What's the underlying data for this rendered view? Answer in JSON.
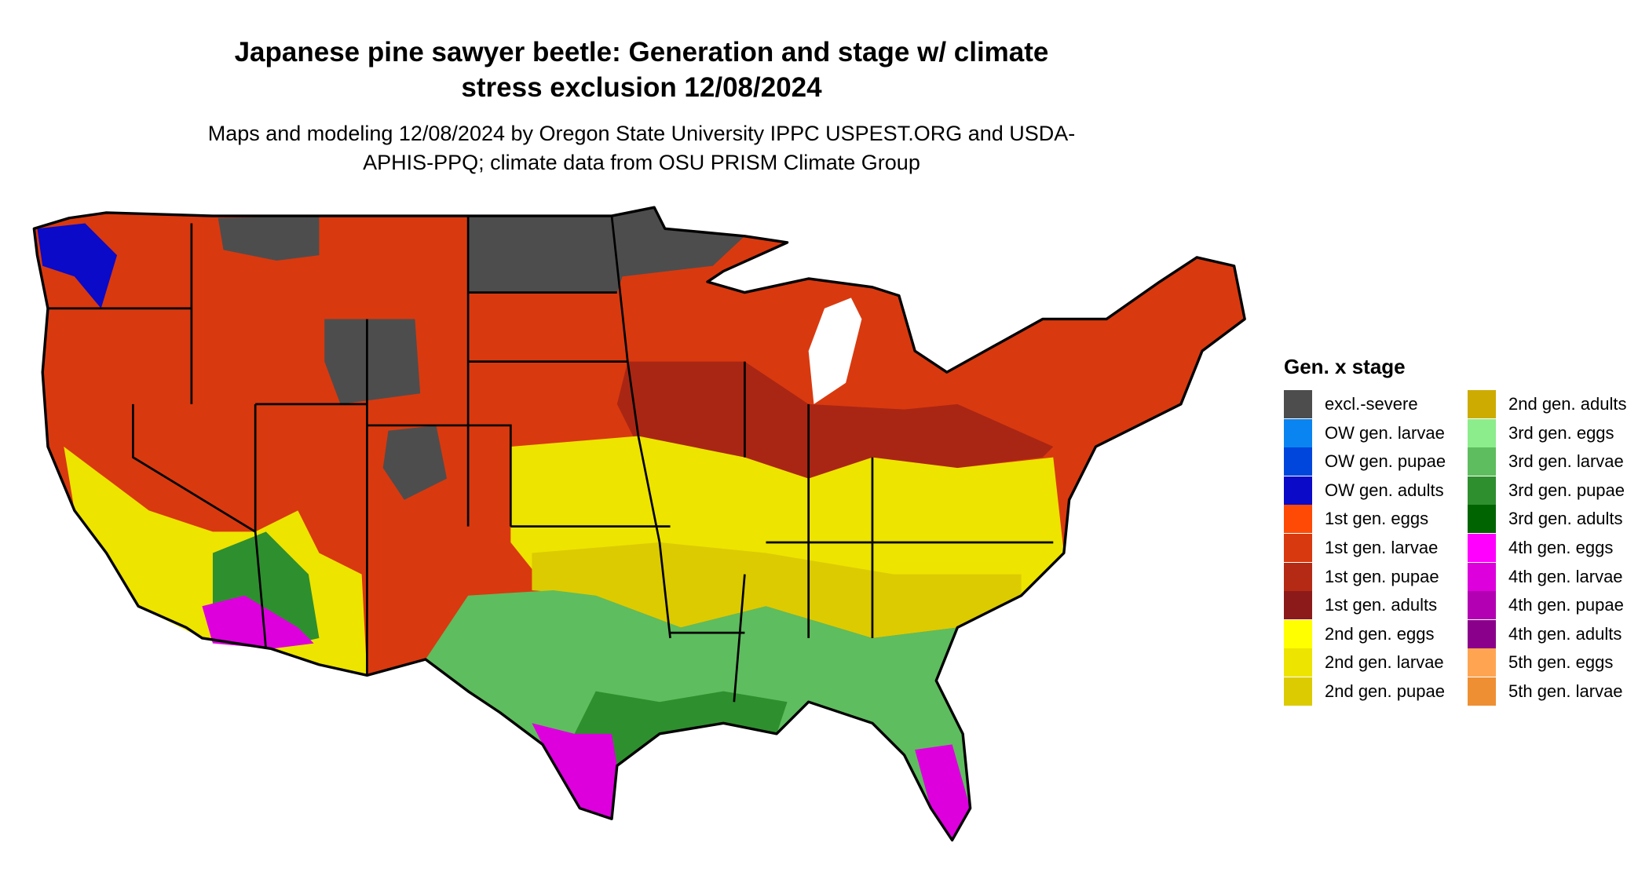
{
  "title": "Japanese pine sawyer beetle: Generation and stage w/ climate stress exclusion 12/08/2024",
  "subtitle": "Maps and modeling 12/08/2024 by Oregon State University IPPC USPEST.ORG and USDA-APHIS-PPQ; climate data from OSU PRISM Climate Group",
  "legend": {
    "title": "Gen. x stage",
    "items": [
      {
        "label": "excl.-severe",
        "color": "#4d4d4d"
      },
      {
        "label": "OW gen. larvae",
        "color": "#0a84f0"
      },
      {
        "label": "OW gen. pupae",
        "color": "#0046dc"
      },
      {
        "label": "OW gen. adults",
        "color": "#0a0ac8"
      },
      {
        "label": "1st gen. eggs",
        "color": "#ff4a05"
      },
      {
        "label": "1st gen. larvae",
        "color": "#d9390f"
      },
      {
        "label": "1st gen. pupae",
        "color": "#b52a14"
      },
      {
        "label": "1st gen. adults",
        "color": "#8c1a1a"
      },
      {
        "label": "2nd gen. eggs",
        "color": "#ffff00"
      },
      {
        "label": "2nd gen. larvae",
        "color": "#ede400"
      },
      {
        "label": "2nd gen. pupae",
        "color": "#dccb00"
      },
      {
        "label": "2nd gen. adults",
        "color": "#cdab00"
      },
      {
        "label": "3rd gen. eggs",
        "color": "#8ced8c"
      },
      {
        "label": "3rd gen. larvae",
        "color": "#5ebd5e"
      },
      {
        "label": "3rd gen. pupae",
        "color": "#2e8f2e"
      },
      {
        "label": "3rd gen. adults",
        "color": "#006400"
      },
      {
        "label": "4th gen. eggs",
        "color": "#ff00ff"
      },
      {
        "label": "4th gen. larvae",
        "color": "#dd00dd"
      },
      {
        "label": "4th gen. pupae",
        "color": "#b300b3"
      },
      {
        "label": "4th gen. adults",
        "color": "#8b008b"
      },
      {
        "label": "5th gen. eggs",
        "color": "#ffa552"
      },
      {
        "label": "5th gen. larvae",
        "color": "#ef8f33"
      }
    ]
  }
}
